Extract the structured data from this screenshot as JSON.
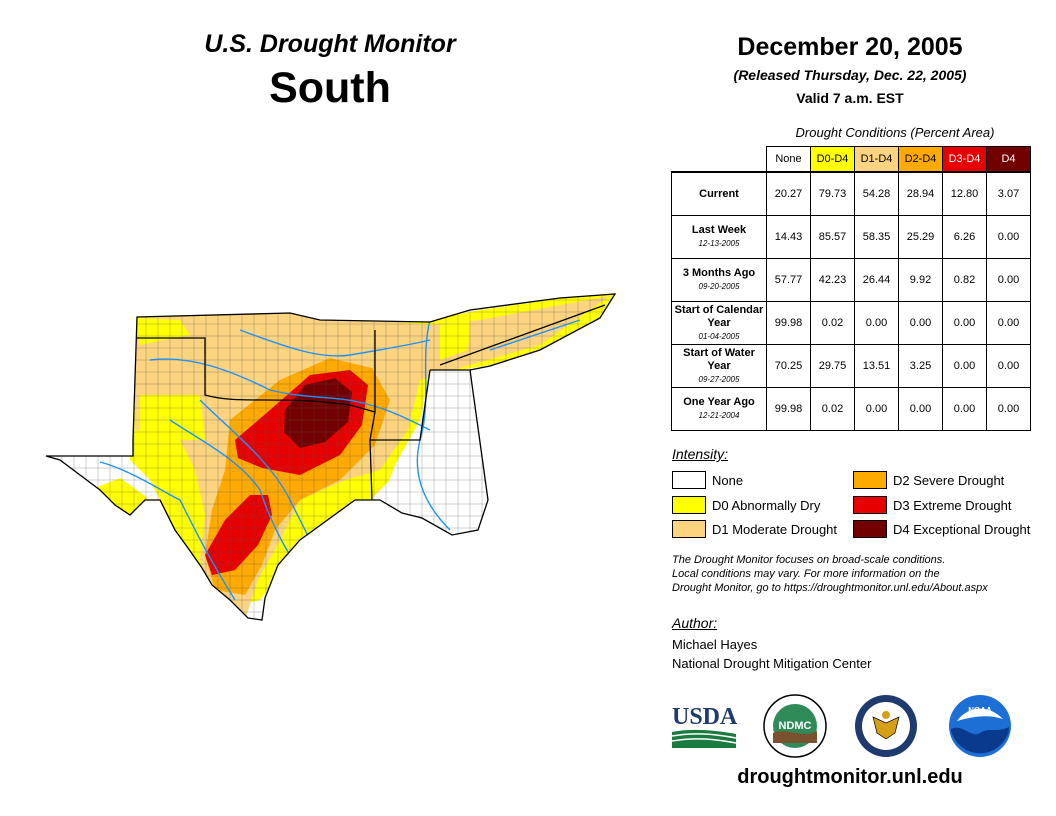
{
  "header": {
    "title": "U.S. Drought Monitor",
    "region": "South",
    "date": "December 20, 2005",
    "released": "(Released Thursday, Dec. 22, 2005)",
    "valid": "Valid 7 a.m. EST"
  },
  "table": {
    "caption": "Drought Conditions (Percent Area)",
    "columns": [
      "None",
      "D0-D4",
      "D1-D4",
      "D2-D4",
      "D3-D4",
      "D4"
    ],
    "column_colors": [
      "#ffffff",
      "#ffff00",
      "#fcd37f",
      "#ffaa00",
      "#e60000",
      "#730000"
    ],
    "rows": [
      {
        "label": "Current",
        "date": "",
        "values": [
          "20.27",
          "79.73",
          "54.28",
          "28.94",
          "12.80",
          "3.07"
        ]
      },
      {
        "label": "Last Week",
        "date": "12-13-2005",
        "values": [
          "14.43",
          "85.57",
          "58.35",
          "25.29",
          "6.26",
          "0.00"
        ]
      },
      {
        "label": "3 Months Ago",
        "date": "09-20-2005",
        "values": [
          "57.77",
          "42.23",
          "26.44",
          "9.92",
          "0.82",
          "0.00"
        ]
      },
      {
        "label": "Start of Calendar Year",
        "date": "01-04-2005",
        "values": [
          "99.98",
          "0.02",
          "0.00",
          "0.00",
          "0.00",
          "0.00"
        ]
      },
      {
        "label": "Start of Water Year",
        "date": "09-27-2005",
        "values": [
          "70.25",
          "29.75",
          "13.51",
          "3.25",
          "0.00",
          "0.00"
        ]
      },
      {
        "label": "One Year Ago",
        "date": "12-21-2004",
        "values": [
          "99.98",
          "0.02",
          "0.00",
          "0.00",
          "0.00",
          "0.00"
        ]
      }
    ]
  },
  "legend": {
    "label": "Intensity:",
    "items": [
      {
        "text": "None",
        "color": "#ffffff"
      },
      {
        "text": "D0 Abnormally Dry",
        "color": "#ffff00"
      },
      {
        "text": "D1 Moderate Drought",
        "color": "#fcd37f"
      },
      {
        "text": "D2 Severe Drought",
        "color": "#ffaa00"
      },
      {
        "text": "D3 Extreme Drought",
        "color": "#e60000"
      },
      {
        "text": "D4 Exceptional Drought",
        "color": "#730000"
      }
    ]
  },
  "note": {
    "line1": "The Drought Monitor focuses on broad-scale conditions.",
    "line2": "Local conditions may vary. For more information on the",
    "line3": "Drought Monitor, go to https://droughtmonitor.unl.edu/About.aspx"
  },
  "author": {
    "label": "Author:",
    "name": "Michael Hayes",
    "org": "National Drought Mitigation Center"
  },
  "logos": {
    "usda": "USDA",
    "ndmc": "NDMC",
    "noaa": "NOAA"
  },
  "website": "droughtmonitor.unl.edu"
}
